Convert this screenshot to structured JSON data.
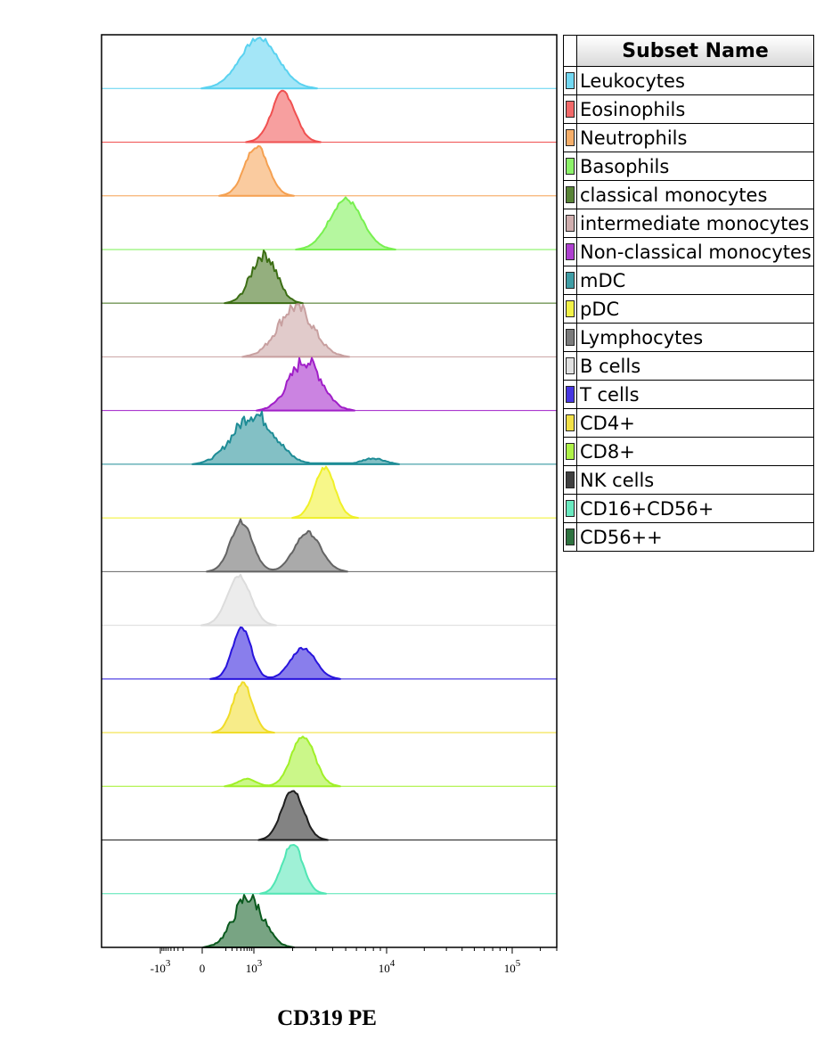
{
  "chart_data": {
    "type": "histogram-overlay",
    "xlabel": "CD319 PE",
    "x_scale": "logicle",
    "x_ticks": [
      {
        "label_base": "-10",
        "label_exp": "3",
        "value": -1000
      },
      {
        "label_base": "0",
        "label_exp": "",
        "value": 0
      },
      {
        "label_base": "10",
        "label_exp": "3",
        "value": 1000
      },
      {
        "label_base": "10",
        "label_exp": "4",
        "value": 10000
      },
      {
        "label_base": "10",
        "label_exp": "5",
        "value": 100000
      }
    ],
    "legend_header": "Subset Name",
    "legend_position": "right",
    "series": [
      {
        "name": "Leukocytes",
        "color": "#5ad2f0",
        "peaks": [
          {
            "center": 1100,
            "height": 1.0,
            "width": 0.26
          }
        ]
      },
      {
        "name": "Eosinophils",
        "color": "#f05050",
        "peaks": [
          {
            "center": 1700,
            "height": 1.0,
            "width": 0.16
          }
        ]
      },
      {
        "name": "Neutrophils",
        "color": "#f5a050",
        "peaks": [
          {
            "center": 1050,
            "height": 1.0,
            "width": 0.16
          }
        ]
      },
      {
        "name": "Basophils",
        "color": "#78f050",
        "peaks": [
          {
            "center": 5000,
            "height": 1.0,
            "width": 0.22
          }
        ]
      },
      {
        "name": "classical monocytes",
        "color": "#3c6e14",
        "peaks": [
          {
            "center": 1200,
            "height": 1.0,
            "width": 0.17
          }
        ]
      },
      {
        "name": "intermediate monocytes",
        "color": "#c8a0a0",
        "peaks": [
          {
            "center": 2100,
            "height": 1.0,
            "width": 0.24
          }
        ]
      },
      {
        "name": "Non-classical monocytes",
        "color": "#a01ec8",
        "peaks": [
          {
            "center": 2500,
            "height": 1.0,
            "width": 0.22
          }
        ]
      },
      {
        "name": "mDC",
        "color": "#1e8c96",
        "peaks": [
          {
            "center": 1000,
            "height": 1.0,
            "width": 0.28
          },
          {
            "center": 8000,
            "height": 0.12,
            "width": 0.15
          }
        ]
      },
      {
        "name": "pDC",
        "color": "#f0f028",
        "peaks": [
          {
            "center": 3500,
            "height": 1.0,
            "width": 0.14
          }
        ]
      },
      {
        "name": "Lymphocytes",
        "color": "#646464",
        "peaks": [
          {
            "center": 520,
            "height": 1.0,
            "width": 0.15
          },
          {
            "center": 2600,
            "height": 0.78,
            "width": 0.18
          }
        ]
      },
      {
        "name": "B cells",
        "color": "#dcdcdc",
        "peaks": [
          {
            "center": 450,
            "height": 1.0,
            "width": 0.16
          }
        ]
      },
      {
        "name": "T cells",
        "color": "#2814dc",
        "peaks": [
          {
            "center": 530,
            "height": 1.0,
            "width": 0.13
          },
          {
            "center": 2400,
            "height": 0.62,
            "width": 0.17
          }
        ]
      },
      {
        "name": "CD4+",
        "color": "#f0dc28",
        "peaks": [
          {
            "center": 550,
            "height": 1.0,
            "width": 0.13
          }
        ]
      },
      {
        "name": "CD8+",
        "color": "#a0f028",
        "peaks": [
          {
            "center": 2400,
            "height": 1.0,
            "width": 0.16
          },
          {
            "center": 700,
            "height": 0.15,
            "width": 0.12
          }
        ]
      },
      {
        "name": "NK cells",
        "color": "#1e1e1e",
        "peaks": [
          {
            "center": 2000,
            "height": 1.0,
            "width": 0.15
          }
        ]
      },
      {
        "name": "CD16+CD56+",
        "color": "#50e6b4",
        "peaks": [
          {
            "center": 2000,
            "height": 1.0,
            "width": 0.14
          }
        ]
      },
      {
        "name": "CD56++",
        "color": "#0a5a1e",
        "peaks": [
          {
            "center": 750,
            "height": 1.0,
            "width": 0.2
          }
        ]
      }
    ]
  }
}
